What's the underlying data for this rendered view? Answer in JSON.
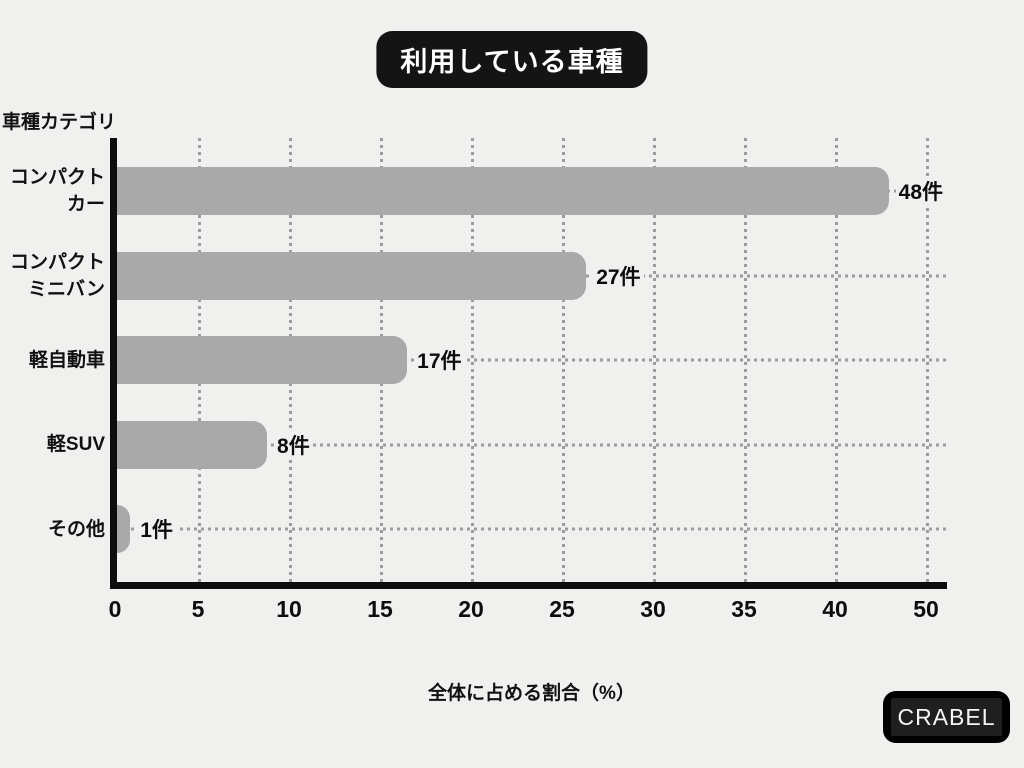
{
  "title": {
    "text": "利用している車種",
    "bg_color": "#141414",
    "text_color": "#ffffff"
  },
  "chart_data": {
    "type": "bar",
    "orientation": "horizontal",
    "title": "利用している車種",
    "ylabel": "車種カテゴリ",
    "xlabel": "全体に占める割合（%）",
    "categories": [
      "コンパクトカー",
      "コンパクトミニバン",
      "軽自動車",
      "軽SUV",
      "その他"
    ],
    "values": [
      48,
      27,
      17,
      8,
      1
    ],
    "unit": "件",
    "data_labels": [
      "48件",
      "27件",
      "17件",
      "8件",
      "1件"
    ],
    "xlim": [
      0,
      50
    ],
    "x_tick_labels": [
      "0",
      "5",
      "10",
      "15",
      "20",
      "25",
      "30",
      "35",
      "40",
      "50"
    ],
    "grid": "dotted vertical and horizontal",
    "legend": "none",
    "bar_color": "#a9a9a9",
    "background_color": "#f0f0ee",
    "axis_color": "#0d0d0d",
    "grid_color": "#9c9c9c"
  },
  "axes": {
    "y_title": "車種カテゴリ",
    "x_title": "全体に占める割合（%）",
    "x_ticks": [
      "0",
      "5",
      "10",
      "15",
      "20",
      "25",
      "30",
      "35",
      "40",
      "50"
    ]
  },
  "bars": [
    {
      "label_lines": [
        "コンパクト",
        "カー"
      ],
      "value": 48,
      "value_label": "48件",
      "length_frac": 0.953
    },
    {
      "label_lines": [
        "コンパクト",
        "ミニバン"
      ],
      "value": 27,
      "value_label": "27件",
      "length_frac": 0.566
    },
    {
      "label_lines": [
        "軽自動車"
      ],
      "value": 17,
      "value_label": "17件",
      "length_frac": 0.35
    },
    {
      "label_lines": [
        "軽SUV"
      ],
      "value": 8,
      "value_label": "8件",
      "length_frac": 0.181
    },
    {
      "label_lines": [
        "その他"
      ],
      "value": 1,
      "value_label": "1件",
      "length_frac": 0.016
    }
  ],
  "footer": {
    "logo_text": "CRABEL"
  }
}
